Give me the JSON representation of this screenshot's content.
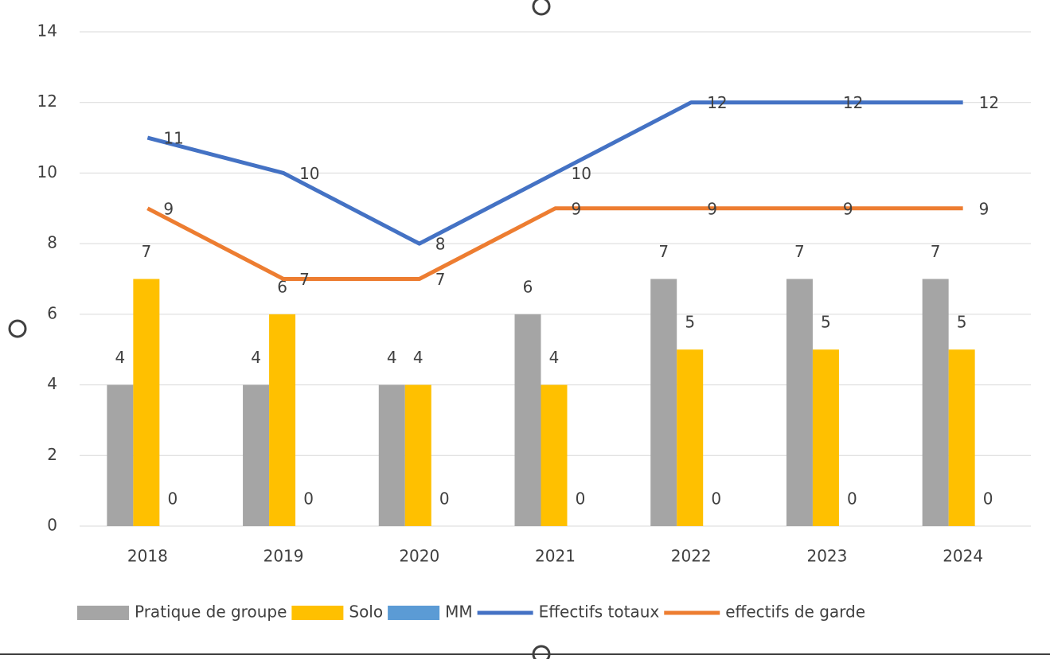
{
  "chart_data": {
    "type": "bar+line",
    "categories": [
      "2018",
      "2019",
      "2020",
      "2021",
      "2022",
      "2023",
      "2024"
    ],
    "series": [
      {
        "name": "Pratique de groupe",
        "type": "bar",
        "color": "#a5a5a5",
        "values": [
          4,
          4,
          4,
          6,
          7,
          7,
          7
        ]
      },
      {
        "name": "Solo",
        "type": "bar",
        "color": "#ffc000",
        "values": [
          7,
          6,
          4,
          4,
          5,
          5,
          5
        ]
      },
      {
        "name": "MM",
        "type": "bar",
        "color": "#5b9bd5",
        "values": [
          0,
          0,
          0,
          0,
          0,
          0,
          0
        ]
      },
      {
        "name": "Effectifs totaux",
        "type": "line",
        "color": "#4472c4",
        "values": [
          11,
          10,
          8,
          10,
          12,
          12,
          12
        ]
      },
      {
        "name": "effectifs de garde",
        "type": "line",
        "color": "#ed7d31",
        "values": [
          9,
          7,
          7,
          9,
          9,
          9,
          9
        ]
      }
    ],
    "ylim": [
      0,
      14
    ],
    "yticks": [
      0,
      2,
      4,
      6,
      8,
      10,
      12,
      14
    ],
    "grid": true,
    "legend": "bottom"
  }
}
